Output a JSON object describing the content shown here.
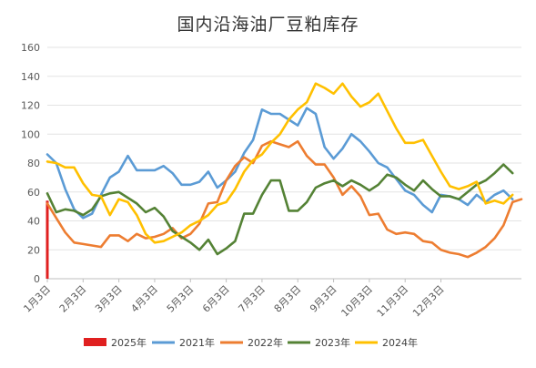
{
  "chart_data": {
    "type": "line",
    "title": "国内沿海油厂豆粕库存",
    "xlabel": "",
    "ylabel": "",
    "ylim": [
      0,
      160
    ],
    "yticks": [
      0,
      20,
      40,
      60,
      80,
      100,
      120,
      140,
      160
    ],
    "x_tick_labels": [
      "1月3日",
      "2月3日",
      "3月3日",
      "4月3日",
      "5月3日",
      "6月3日",
      "7月3日",
      "8月3日",
      "9月3日",
      "10月3日",
      "11月3日",
      "12月3日"
    ],
    "grid": "horizontal",
    "legend_position": "bottom",
    "series": [
      {
        "name": "2025年",
        "render": "bar",
        "color": "#e02020",
        "points": [
          [
            1.0,
            54
          ]
        ]
      },
      {
        "name": "2021年",
        "color": "#5b9bd5",
        "points": [
          [
            1.0,
            86
          ],
          [
            1.25,
            80
          ],
          [
            1.5,
            62
          ],
          [
            1.75,
            48
          ],
          [
            2.0,
            42
          ],
          [
            2.25,
            45
          ],
          [
            2.5,
            58
          ],
          [
            2.75,
            70
          ],
          [
            3.0,
            74
          ],
          [
            3.25,
            85
          ],
          [
            3.5,
            75
          ],
          [
            3.75,
            75
          ],
          [
            4.0,
            75
          ],
          [
            4.25,
            78
          ],
          [
            4.5,
            73
          ],
          [
            4.75,
            65
          ],
          [
            5.0,
            65
          ],
          [
            5.25,
            67
          ],
          [
            5.5,
            74
          ],
          [
            5.75,
            63
          ],
          [
            6.0,
            68
          ],
          [
            6.25,
            74
          ],
          [
            6.5,
            87
          ],
          [
            6.75,
            96
          ],
          [
            7.0,
            117
          ],
          [
            7.25,
            114
          ],
          [
            7.5,
            114
          ],
          [
            7.75,
            110
          ],
          [
            8.0,
            106
          ],
          [
            8.25,
            118
          ],
          [
            8.5,
            114
          ],
          [
            8.75,
            91
          ],
          [
            9.0,
            83
          ],
          [
            9.25,
            90
          ],
          [
            9.5,
            100
          ],
          [
            9.75,
            95
          ],
          [
            10.0,
            88
          ],
          [
            10.25,
            80
          ],
          [
            10.5,
            77
          ],
          [
            10.75,
            69
          ],
          [
            11.0,
            61
          ],
          [
            11.25,
            58
          ],
          [
            11.5,
            51
          ],
          [
            11.75,
            46
          ],
          [
            12.0,
            58
          ],
          [
            12.25,
            57
          ],
          [
            12.5,
            55
          ],
          [
            12.75,
            51
          ],
          [
            13.0,
            58
          ],
          [
            13.25,
            53
          ],
          [
            13.5,
            58
          ],
          [
            13.75,
            61
          ],
          [
            14.0,
            55
          ]
        ]
      },
      {
        "name": "2022年",
        "color": "#ed7d31",
        "points": [
          [
            1.0,
            52
          ],
          [
            1.25,
            42
          ],
          [
            1.5,
            32
          ],
          [
            1.75,
            25
          ],
          [
            2.0,
            24
          ],
          [
            2.25,
            23
          ],
          [
            2.5,
            22
          ],
          [
            2.75,
            30
          ],
          [
            3.0,
            30
          ],
          [
            3.25,
            26
          ],
          [
            3.5,
            31
          ],
          [
            3.75,
            28
          ],
          [
            4.0,
            29
          ],
          [
            4.25,
            31
          ],
          [
            4.5,
            35
          ],
          [
            4.75,
            28
          ],
          [
            5.0,
            31
          ],
          [
            5.25,
            38
          ],
          [
            5.5,
            52
          ],
          [
            5.75,
            53
          ],
          [
            6.0,
            68
          ],
          [
            6.25,
            78
          ],
          [
            6.5,
            84
          ],
          [
            6.75,
            80
          ],
          [
            7.0,
            92
          ],
          [
            7.25,
            95
          ],
          [
            7.5,
            93
          ],
          [
            7.75,
            91
          ],
          [
            8.0,
            95
          ],
          [
            8.25,
            85
          ],
          [
            8.5,
            79
          ],
          [
            8.75,
            79
          ],
          [
            9.0,
            70
          ],
          [
            9.25,
            58
          ],
          [
            9.5,
            64
          ],
          [
            9.75,
            57
          ],
          [
            10.0,
            44
          ],
          [
            10.25,
            45
          ],
          [
            10.5,
            34
          ],
          [
            10.75,
            31
          ],
          [
            11.0,
            32
          ],
          [
            11.25,
            31
          ],
          [
            11.5,
            26
          ],
          [
            11.75,
            25
          ],
          [
            12.0,
            20
          ],
          [
            12.25,
            18
          ],
          [
            12.5,
            17
          ],
          [
            12.75,
            15
          ],
          [
            13.0,
            18
          ],
          [
            13.25,
            22
          ],
          [
            13.5,
            28
          ],
          [
            13.75,
            37
          ],
          [
            14.0,
            53
          ],
          [
            14.25,
            55
          ]
        ]
      },
      {
        "name": "2023年",
        "color": "#548235",
        "points": [
          [
            1.0,
            59
          ],
          [
            1.25,
            46
          ],
          [
            1.5,
            48
          ],
          [
            1.75,
            47
          ],
          [
            2.0,
            44
          ],
          [
            2.25,
            48
          ],
          [
            2.5,
            57
          ],
          [
            2.75,
            59
          ],
          [
            3.0,
            60
          ],
          [
            3.25,
            56
          ],
          [
            3.5,
            52
          ],
          [
            3.75,
            46
          ],
          [
            4.0,
            49
          ],
          [
            4.25,
            43
          ],
          [
            4.5,
            33
          ],
          [
            4.75,
            29
          ],
          [
            5.0,
            25
          ],
          [
            5.25,
            20
          ],
          [
            5.5,
            27
          ],
          [
            5.75,
            17
          ],
          [
            6.0,
            21
          ],
          [
            6.25,
            26
          ],
          [
            6.5,
            45
          ],
          [
            6.75,
            45
          ],
          [
            7.0,
            58
          ],
          [
            7.25,
            68
          ],
          [
            7.5,
            68
          ],
          [
            7.75,
            47
          ],
          [
            8.0,
            47
          ],
          [
            8.25,
            53
          ],
          [
            8.5,
            63
          ],
          [
            8.75,
            66
          ],
          [
            9.0,
            68
          ],
          [
            9.25,
            64
          ],
          [
            9.5,
            68
          ],
          [
            9.75,
            65
          ],
          [
            10.0,
            61
          ],
          [
            10.25,
            65
          ],
          [
            10.5,
            72
          ],
          [
            10.75,
            70
          ],
          [
            11.0,
            65
          ],
          [
            11.25,
            61
          ],
          [
            11.5,
            68
          ],
          [
            11.75,
            62
          ],
          [
            12.0,
            57
          ],
          [
            12.25,
            57
          ],
          [
            12.5,
            55
          ],
          [
            12.75,
            60
          ],
          [
            13.0,
            65
          ],
          [
            13.25,
            68
          ],
          [
            13.5,
            73
          ],
          [
            13.75,
            79
          ],
          [
            14.0,
            73
          ]
        ]
      },
      {
        "name": "2024年",
        "color": "#ffc000",
        "points": [
          [
            1.0,
            81
          ],
          [
            1.25,
            80
          ],
          [
            1.5,
            77
          ],
          [
            1.75,
            77
          ],
          [
            2.0,
            66
          ],
          [
            2.25,
            58
          ],
          [
            2.5,
            57
          ],
          [
            2.75,
            44
          ],
          [
            3.0,
            55
          ],
          [
            3.25,
            53
          ],
          [
            3.5,
            44
          ],
          [
            3.75,
            31
          ],
          [
            4.0,
            25
          ],
          [
            4.25,
            26
          ],
          [
            4.5,
            29
          ],
          [
            4.75,
            32
          ],
          [
            5.0,
            37
          ],
          [
            5.25,
            40
          ],
          [
            5.5,
            44
          ],
          [
            5.75,
            51
          ],
          [
            6.0,
            53
          ],
          [
            6.25,
            62
          ],
          [
            6.5,
            74
          ],
          [
            6.75,
            82
          ],
          [
            7.0,
            86
          ],
          [
            7.25,
            94
          ],
          [
            7.5,
            100
          ],
          [
            7.75,
            110
          ],
          [
            8.0,
            117
          ],
          [
            8.25,
            122
          ],
          [
            8.5,
            135
          ],
          [
            8.75,
            132
          ],
          [
            9.0,
            128
          ],
          [
            9.25,
            135
          ],
          [
            9.5,
            126
          ],
          [
            9.75,
            119
          ],
          [
            10.0,
            122
          ],
          [
            10.25,
            128
          ],
          [
            10.5,
            116
          ],
          [
            10.75,
            104
          ],
          [
            11.0,
            94
          ],
          [
            11.25,
            94
          ],
          [
            11.5,
            96
          ],
          [
            11.75,
            85
          ],
          [
            12.0,
            74
          ],
          [
            12.25,
            64
          ],
          [
            12.5,
            62
          ],
          [
            12.75,
            64
          ],
          [
            13.0,
            67
          ],
          [
            13.25,
            52
          ],
          [
            13.5,
            54
          ],
          [
            13.75,
            52
          ],
          [
            14.0,
            58
          ]
        ]
      }
    ]
  }
}
